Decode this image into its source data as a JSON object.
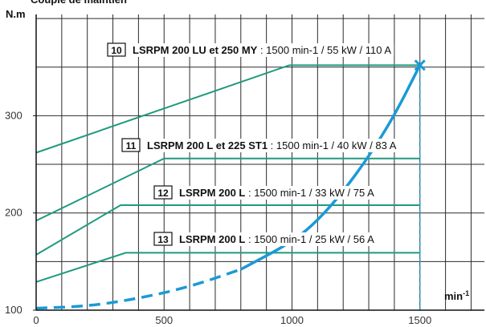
{
  "title": "Couple de maintien",
  "chart_data": {
    "type": "line",
    "xlabel": "min-1",
    "ylabel": "N.m",
    "xlim": [
      0,
      1700
    ],
    "ylim": [
      100,
      400
    ],
    "xticks": [
      {
        "value": 0,
        "label": "0"
      },
      {
        "value": 500,
        "label": "500"
      },
      {
        "value": 1000,
        "label": "1000"
      },
      {
        "value": 1500,
        "label": "1500",
        "highlight": true
      }
    ],
    "yticks": [
      {
        "value": 100,
        "label": "100"
      },
      {
        "value": 200,
        "label": "200"
      },
      {
        "value": 300,
        "label": "300"
      }
    ],
    "grid": true,
    "series": [
      {
        "id": "10",
        "color": "#1f9a7e",
        "x": [
          0,
          990,
          1500
        ],
        "y": [
          262,
          352,
          352
        ]
      },
      {
        "id": "11",
        "color": "#1f9a7e",
        "x": [
          0,
          500,
          1500
        ],
        "y": [
          192,
          256,
          256
        ]
      },
      {
        "id": "12",
        "color": "#1f9a7e",
        "x": [
          0,
          330,
          1500
        ],
        "y": [
          157,
          208,
          208
        ]
      },
      {
        "id": "13",
        "color": "#1f9a7e",
        "x": [
          0,
          350,
          1500
        ],
        "y": [
          129,
          159,
          159
        ]
      },
      {
        "id": "load",
        "color": "#1a9ad6",
        "style": "dashed-then-solid",
        "x": [
          0,
          200,
          400,
          600,
          800,
          1000,
          1100,
          1200,
          1300,
          1400,
          1500
        ],
        "y": [
          102,
          104,
          112,
          124,
          142,
          170,
          192,
          222,
          258,
          300,
          352
        ]
      }
    ],
    "vline": {
      "x": 1500,
      "color": "#1a9ad6"
    },
    "annotations": [
      {
        "num": "10",
        "name": "LSRPM 200 LU et 250 MY",
        "spec": " : 1500 min-1 / 55 kW / 110 A"
      },
      {
        "num": "11",
        "name": "LSRPM 200 L et 225 ST1",
        "spec": " : 1500 min-1 / 40 kW / 83 A"
      },
      {
        "num": "12",
        "name": "LSRPM 200 L",
        "spec": " : 1500 min-1 / 33 kW / 75 A"
      },
      {
        "num": "13",
        "name": "LSRPM 200 L",
        "spec": " : 1500 min-1 / 25 kW / 56 A"
      }
    ]
  }
}
